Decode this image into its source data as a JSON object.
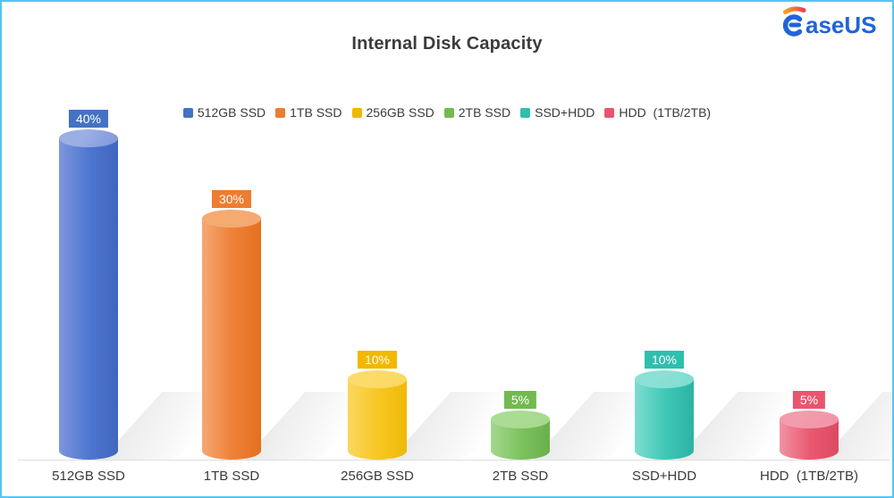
{
  "page": {
    "border_color": "#54c5f1",
    "background": "#ffffff"
  },
  "logo": {
    "brand": "EaseUS",
    "wordmark": "aseUS",
    "blue": "#2163d9",
    "swoosh_from": "#f9a11b",
    "swoosh_to": "#e8414e"
  },
  "chart_data": {
    "type": "bar",
    "title": "Internal Disk Capacity",
    "categories": [
      "512GB SSD",
      "1TB SSD",
      "256GB SSD",
      "2TB SSD",
      "SSD+HDD",
      "HDD  (1TB/2TB)"
    ],
    "values": [
      40,
      30,
      10,
      5,
      10,
      5
    ],
    "unit": "%",
    "value_labels": [
      "40%",
      "30%",
      "10%",
      "5%",
      "10%",
      "5%"
    ],
    "legend": [
      "512GB SSD",
      "1TB SSD",
      "256GB SSD",
      "2TB SSD",
      "SSD+HDD",
      "HDD  (1TB/2TB)"
    ],
    "legend_position": "top",
    "xlabel": "",
    "ylabel": "",
    "ylim": [
      0,
      45
    ],
    "grid": false,
    "series_colors": [
      {
        "light": "#7e96dc",
        "main": "#4d76d0",
        "dark": "#4166bd",
        "cap": "#9cafe5",
        "badge": "#4472c4"
      },
      {
        "light": "#f4a873",
        "main": "#ee8138",
        "dark": "#e4701f",
        "cap": "#f5ab70",
        "badge": "#ed7d31"
      },
      {
        "light": "#fbd75f",
        "main": "#f7c724",
        "dark": "#eeb909",
        "cap": "#fbdb69",
        "badge": "#f2b700"
      },
      {
        "light": "#a5d88e",
        "main": "#7cc25e",
        "dark": "#69b04b",
        "cap": "#abdc94",
        "badge": "#72ba50"
      },
      {
        "light": "#7edcd0",
        "main": "#3fc8b7",
        "dark": "#2cb3a3",
        "cap": "#8ce0d5",
        "badge": "#2fbfae"
      },
      {
        "light": "#f193a5",
        "main": "#e9596f",
        "dark": "#dc4a62",
        "cap": "#f29cae",
        "badge": "#e8556f"
      }
    ]
  }
}
